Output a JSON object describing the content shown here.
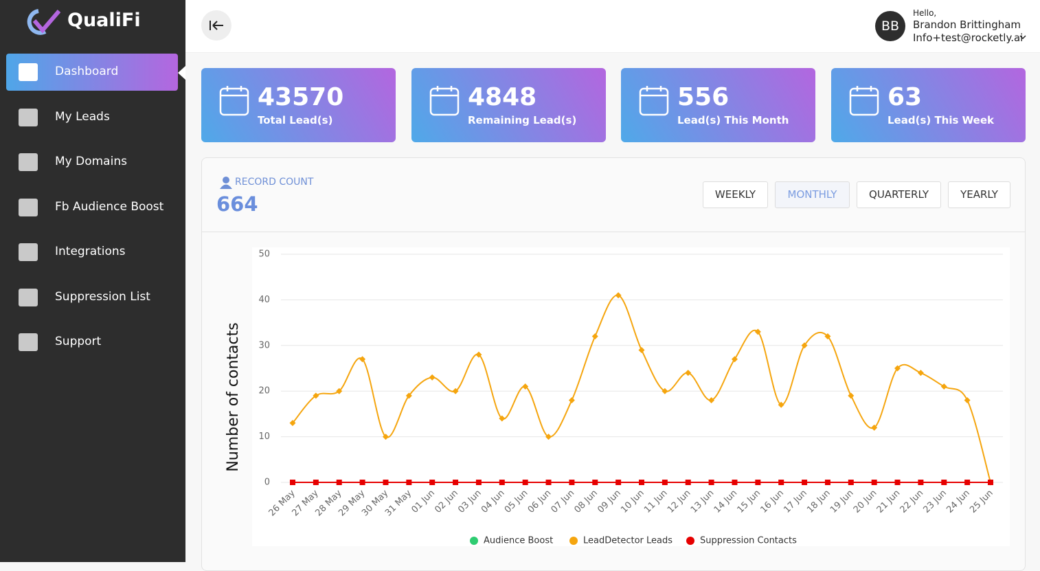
{
  "sidebar": {
    "brand": "QualiFi",
    "menu": [
      "Dashboard",
      "My Leads",
      "My Domains",
      "Fb Audience Boost",
      "Integrations",
      "Suppression List",
      "Support"
    ],
    "active": 0
  },
  "header": {
    "avatar": "BB",
    "greeting": "Hello,",
    "name": "Brandon Brittingham",
    "email": "Info+test@rocketly.ai"
  },
  "stats": [
    {
      "value": 43570,
      "label": "Total Lead(s)"
    },
    {
      "value": 4848,
      "label": "Remaining Lead(s)"
    },
    {
      "value": 556,
      "label": "Lead(s) This Month"
    },
    {
      "value": 63,
      "label": "Lead(s) This Week"
    }
  ],
  "record": {
    "label": "RECORD COUNT",
    "count": 664,
    "periods": [
      "WEEKLY",
      "MONTHLY",
      "QUARTERLY",
      "YEARLY"
    ],
    "active": 1
  },
  "chart_data": {
    "type": "line",
    "y_label": "Number of contacts",
    "categories": [
      "26 May",
      "27 May",
      "28 May",
      "29 May",
      "30 May",
      "31 May",
      "01 Jun",
      "02 Jun",
      "03 Jun",
      "04 Jun",
      "05 Jun",
      "06 Jun",
      "07 Jun",
      "08 Jun",
      "09 Jun",
      "10 Jun",
      "11 Jun",
      "12 Jun",
      "13 Jun",
      "14 Jun",
      "15 Jun",
      "16 Jun",
      "17 Jun",
      "18 Jun",
      "19 Jun",
      "20 Jun",
      "21 Jun",
      "22 Jun",
      "23 Jun",
      "24 Jun",
      "25 Jun"
    ],
    "series": [
      {
        "name": "Audience Boost",
        "color": "#2ecc71",
        "values": [
          0,
          0,
          0,
          0,
          0,
          0,
          0,
          0,
          0,
          0,
          0,
          0,
          0,
          0,
          0,
          0,
          0,
          0,
          0,
          0,
          0,
          0,
          0,
          0,
          0,
          0,
          0,
          0,
          0,
          0,
          0
        ]
      },
      {
        "name": "LeadDetector Leads",
        "color": "#f5a50e",
        "values": [
          13,
          19,
          20,
          27,
          10,
          19,
          23,
          20,
          28,
          14,
          21,
          10,
          18,
          32,
          41,
          29,
          20,
          24,
          18,
          27,
          33,
          17,
          30,
          32,
          19,
          12,
          25,
          24,
          21,
          18,
          0
        ]
      },
      {
        "name": "Suppression Contacts",
        "color": "#e60000",
        "values": [
          0,
          0,
          0,
          0,
          0,
          0,
          0,
          0,
          0,
          0,
          0,
          0,
          0,
          0,
          0,
          0,
          0,
          0,
          0,
          0,
          0,
          0,
          0,
          0,
          0,
          0,
          0,
          0,
          0,
          0,
          0
        ]
      }
    ],
    "ylim": [
      0,
      50
    ],
    "yticks": [
      0,
      10,
      20,
      30,
      40,
      50
    ],
    "grid": true,
    "legend": "bottom"
  }
}
